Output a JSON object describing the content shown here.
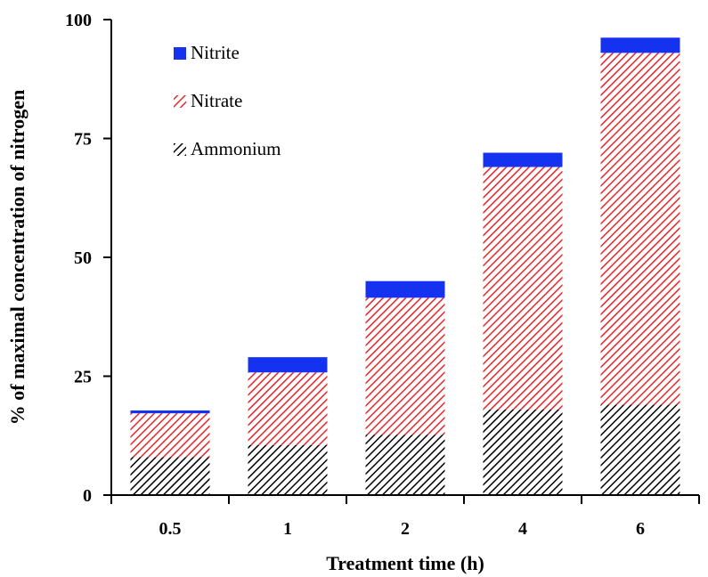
{
  "chart_data": {
    "type": "bar",
    "stacked": true,
    "title": "",
    "xlabel": "Treatment time (h)",
    "ylabel": "% of maximal concentration of nitrogen",
    "ylim": [
      0,
      100
    ],
    "yticks": [
      0,
      25,
      50,
      75,
      100
    ],
    "categories": [
      "0.5",
      "1",
      "2",
      "4",
      "6"
    ],
    "series": [
      {
        "name": "Ammonium",
        "values": [
          8,
          10.5,
          12.7,
          18,
          19
        ],
        "color": "#000000",
        "pattern": "diagonal-hatch"
      },
      {
        "name": "Nitrate",
        "values": [
          9.2,
          15.3,
          28.8,
          51,
          74
        ],
        "color": "#e8262a",
        "pattern": "diagonal-hatch"
      },
      {
        "name": "Nitrite",
        "values": [
          0.6,
          3.2,
          3.5,
          3,
          3.2
        ],
        "color": "#1432f0",
        "pattern": "solid"
      }
    ],
    "legend": {
      "position": "top-left",
      "order": [
        "Nitrite",
        "Nitrate",
        "Ammonium"
      ]
    },
    "grid": false
  }
}
